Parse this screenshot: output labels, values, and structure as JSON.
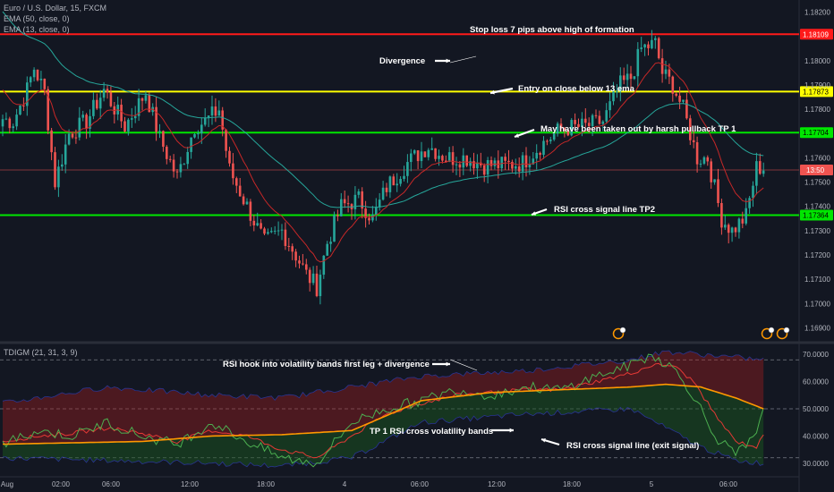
{
  "header": {
    "symbol": "Euro / U.S. Dollar, 15, FXCM",
    "ema50": "EMA (50, close, 0)",
    "ema13": "EMA (13, close, 0)",
    "indicator": "TDIGM (21, 31, 3, 9)"
  },
  "colors": {
    "background": "#131722",
    "up": "#26a69a",
    "down": "#ef5350",
    "ema50": "#26a69a",
    "ema13": "#c62828",
    "red_line": "#ff1a1a",
    "yellow_line": "#ffff00",
    "green_line": "#00e600",
    "current_price": "#ef5350",
    "rsi_price": "#4caf50",
    "rsi_signal": "#e53935",
    "market_base": "#ff9800"
  },
  "chart_data": [
    {
      "type": "candlestick",
      "title": "Euro / U.S. Dollar, 15, FXCM",
      "ylim": [
        1.1685,
        1.1825
      ],
      "y_ticks": [
        "1.18200",
        "1.18000",
        "1.17900",
        "1.17800",
        "1.17600",
        "1.17500",
        "1.17400",
        "1.17300",
        "1.17200",
        "1.17100",
        "1.17000",
        "1.16900"
      ],
      "x_ticks": [
        "Aug",
        "02:00",
        "06:00",
        "12:00",
        "18:00",
        "4",
        "06:00",
        "12:00",
        "18:00",
        "5",
        "06:00"
      ],
      "levels": [
        {
          "name": "stop-loss",
          "value": 1.18109,
          "label": "1.18109",
          "color": "#ff1a1a"
        },
        {
          "name": "entry",
          "value": 1.17873,
          "label": "1.17873",
          "color": "#ffff00"
        },
        {
          "name": "tp1",
          "value": 1.17704,
          "label": "1.17704",
          "color": "#00e600"
        },
        {
          "name": "tp2",
          "value": 1.17364,
          "label": "1.17364",
          "color": "#00e600"
        }
      ],
      "current_price": {
        "value": 1.1755,
        "label": "13:50"
      },
      "ohlc_anchor_closes": [
        [
          0,
          1.1776
        ],
        [
          3,
          1.1775
        ],
        [
          7,
          1.1788
        ],
        [
          9,
          1.1797
        ],
        [
          12,
          1.1787
        ],
        [
          15,
          1.175
        ],
        [
          19,
          1.177
        ],
        [
          24,
          1.1775
        ],
        [
          29,
          1.1788
        ],
        [
          35,
          1.1773
        ],
        [
          41,
          1.1787
        ],
        [
          45,
          1.1768
        ],
        [
          50,
          1.1752
        ],
        [
          55,
          1.1773
        ],
        [
          58,
          1.1775
        ],
        [
          62,
          1.178
        ],
        [
          65,
          1.1755
        ],
        [
          70,
          1.174
        ],
        [
          75,
          1.1725
        ],
        [
          80,
          1.173
        ],
        [
          84,
          1.172
        ],
        [
          87,
          1.1712
        ],
        [
          90,
          1.1707
        ],
        [
          93,
          1.1725
        ],
        [
          97,
          1.174
        ],
        [
          102,
          1.1743
        ],
        [
          106,
          1.1735
        ],
        [
          110,
          1.1748
        ],
        [
          116,
          1.1758
        ],
        [
          122,
          1.1765
        ],
        [
          127,
          1.176
        ],
        [
          133,
          1.176
        ],
        [
          138,
          1.1757
        ],
        [
          144,
          1.1757
        ],
        [
          149,
          1.1758
        ],
        [
          154,
          1.1765
        ],
        [
          160,
          1.1772
        ],
        [
          167,
          1.1773
        ],
        [
          172,
          1.1775
        ],
        [
          177,
          1.179
        ],
        [
          180,
          1.1793
        ],
        [
          183,
          1.1805
        ],
        [
          187,
          1.1807
        ],
        [
          189,
          1.1795
        ],
        [
          192,
          1.179
        ],
        [
          195,
          1.178
        ],
        [
          199,
          1.176
        ],
        [
          202,
          1.176
        ],
        [
          206,
          1.1735
        ],
        [
          209,
          1.173
        ],
        [
          213,
          1.1736
        ],
        [
          216,
          1.1756
        ],
        [
          218,
          1.1756
        ]
      ],
      "annotations": [
        "Stop loss 7 pips above high of formation",
        "Divergence",
        "Entry on close below 13 ema",
        "May have been taken out by harsh pullback TP 1",
        "RSI cross signal line TP2"
      ],
      "series": [
        {
          "name": "EMA (50, close, 0)"
        },
        {
          "name": "EMA (13, close, 0)"
        }
      ]
    },
    {
      "type": "line",
      "title": "TDIGM (21, 31, 3, 9)",
      "ylim": [
        26,
        73
      ],
      "y_ticks": [
        "70.0000",
        "60.0000",
        "50.0000",
        "40.0000",
        "30.0000"
      ],
      "reference_lines": [
        68,
        50,
        32
      ],
      "rsi_price_anchors": [
        [
          0,
          37
        ],
        [
          10,
          42
        ],
        [
          20,
          40
        ],
        [
          30,
          45
        ],
        [
          40,
          40
        ],
        [
          50,
          37
        ],
        [
          60,
          45
        ],
        [
          70,
          38
        ],
        [
          80,
          32
        ],
        [
          90,
          30
        ],
        [
          100,
          45
        ],
        [
          110,
          50
        ],
        [
          120,
          53
        ],
        [
          130,
          57
        ],
        [
          140,
          55
        ],
        [
          150,
          58
        ],
        [
          160,
          57
        ],
        [
          170,
          62
        ],
        [
          180,
          66
        ],
        [
          186,
          70
        ],
        [
          192,
          65
        ],
        [
          198,
          55
        ],
        [
          204,
          40
        ],
        [
          210,
          33
        ],
        [
          216,
          40
        ],
        [
          218,
          49
        ]
      ],
      "rsi_signal_anchors": [
        [
          0,
          38
        ],
        [
          10,
          40
        ],
        [
          20,
          41
        ],
        [
          30,
          43
        ],
        [
          40,
          41
        ],
        [
          50,
          38
        ],
        [
          60,
          42
        ],
        [
          70,
          40
        ],
        [
          80,
          35
        ],
        [
          90,
          32
        ],
        [
          100,
          40
        ],
        [
          110,
          48
        ],
        [
          120,
          52
        ],
        [
          130,
          55
        ],
        [
          140,
          56
        ],
        [
          150,
          57
        ],
        [
          160,
          57
        ],
        [
          170,
          60
        ],
        [
          180,
          63
        ],
        [
          186,
          66
        ],
        [
          192,
          66
        ],
        [
          198,
          60
        ],
        [
          204,
          48
        ],
        [
          210,
          38
        ],
        [
          216,
          36
        ],
        [
          218,
          40
        ]
      ],
      "market_base_anchors": [
        [
          0,
          37
        ],
        [
          20,
          37.5
        ],
        [
          40,
          38
        ],
        [
          60,
          40
        ],
        [
          80,
          40.5
        ],
        [
          100,
          42
        ],
        [
          120,
          53
        ],
        [
          140,
          56
        ],
        [
          160,
          57
        ],
        [
          180,
          58
        ],
        [
          190,
          59
        ],
        [
          200,
          58
        ],
        [
          210,
          54
        ],
        [
          218,
          50
        ]
      ],
      "band_upper_anchors": [
        [
          0,
          52
        ],
        [
          30,
          58
        ],
        [
          60,
          55
        ],
        [
          80,
          54
        ],
        [
          100,
          58
        ],
        [
          120,
          62
        ],
        [
          150,
          64
        ],
        [
          180,
          68
        ],
        [
          190,
          71
        ],
        [
          200,
          70
        ],
        [
          218,
          68
        ]
      ],
      "band_lower_anchors": [
        [
          0,
          32
        ],
        [
          30,
          31
        ],
        [
          60,
          30
        ],
        [
          80,
          29
        ],
        [
          100,
          32
        ],
        [
          120,
          45
        ],
        [
          150,
          48
        ],
        [
          180,
          50
        ],
        [
          200,
          36
        ],
        [
          210,
          31
        ],
        [
          218,
          30
        ]
      ],
      "annotations": [
        "RSI hook into volatility bands first leg + divergence",
        "TP 1 RSI cross volatility bands",
        "RSI cross signal line (exit signal)"
      ]
    }
  ]
}
